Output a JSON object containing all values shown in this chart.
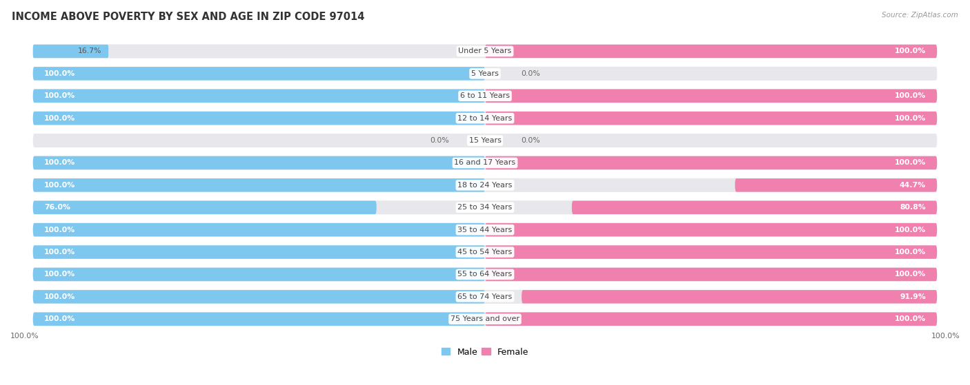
{
  "title": "INCOME ABOVE POVERTY BY SEX AND AGE IN ZIP CODE 97014",
  "source": "Source: ZipAtlas.com",
  "categories": [
    "Under 5 Years",
    "5 Years",
    "6 to 11 Years",
    "12 to 14 Years",
    "15 Years",
    "16 and 17 Years",
    "18 to 24 Years",
    "25 to 34 Years",
    "35 to 44 Years",
    "45 to 54 Years",
    "55 to 64 Years",
    "65 to 74 Years",
    "75 Years and over"
  ],
  "male_values": [
    16.7,
    100.0,
    100.0,
    100.0,
    0.0,
    100.0,
    100.0,
    76.0,
    100.0,
    100.0,
    100.0,
    100.0,
    100.0
  ],
  "female_values": [
    100.0,
    0.0,
    100.0,
    100.0,
    0.0,
    100.0,
    44.7,
    80.8,
    100.0,
    100.0,
    100.0,
    91.9,
    100.0
  ],
  "male_color": "#7ec8f0",
  "female_color": "#f080ae",
  "bg_track_color": "#e8e8ec",
  "title_fontsize": 10.5,
  "label_fontsize": 8.0,
  "value_fontsize": 7.8,
  "legend_fontsize": 9
}
